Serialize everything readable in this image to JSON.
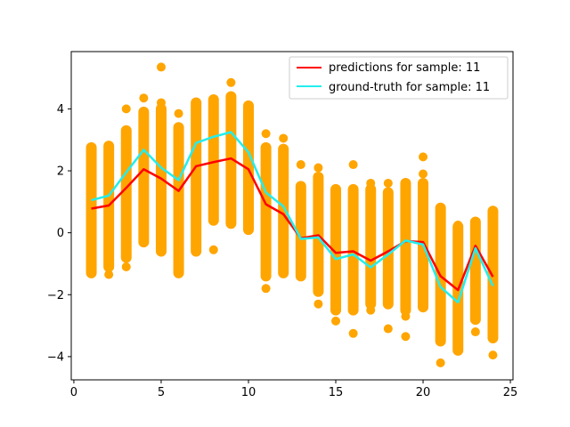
{
  "chart_data": {
    "type": "scatter",
    "title": "",
    "xlabel": "",
    "ylabel": "",
    "xlim": [
      -0.15,
      25.15
    ],
    "ylim": [
      -4.75,
      5.85
    ],
    "xticks": [
      0,
      5,
      10,
      15,
      20,
      25
    ],
    "yticks": [
      -4,
      -2,
      0,
      2,
      4
    ],
    "grid": false,
    "legend_position": "top-right",
    "scatter": {
      "color": "#FFA500",
      "x": [
        1,
        2,
        3,
        4,
        5,
        6,
        7,
        8,
        9,
        10,
        11,
        12,
        13,
        14,
        15,
        16,
        17,
        18,
        19,
        20,
        21,
        22,
        23,
        24
      ],
      "band_min": [
        -1.3,
        -1.1,
        -0.8,
        -0.3,
        -0.6,
        -1.3,
        -0.6,
        0.4,
        0.3,
        0.1,
        -1.4,
        -1.3,
        -1.4,
        -1.9,
        -2.5,
        -2.5,
        -2.3,
        -2.3,
        -2.5,
        -2.4,
        -3.5,
        -3.8,
        -2.8,
        -3.4
      ],
      "band_max": [
        2.75,
        2.8,
        3.3,
        3.9,
        4.0,
        3.4,
        4.2,
        4.3,
        4.4,
        4.1,
        2.75,
        2.7,
        1.5,
        1.8,
        1.4,
        1.4,
        1.4,
        1.3,
        1.6,
        1.6,
        0.8,
        0.2,
        0.35,
        0.7
      ],
      "outliers": [
        [
          2,
          -1.35
        ],
        [
          3,
          -1.1
        ],
        [
          3,
          4.0
        ],
        [
          4,
          4.35
        ],
        [
          5,
          5.35
        ],
        [
          5,
          4.2
        ],
        [
          6,
          3.85
        ],
        [
          6,
          -1.25
        ],
        [
          8,
          -0.55
        ],
        [
          9,
          4.85
        ],
        [
          11,
          3.2
        ],
        [
          11,
          -1.8
        ],
        [
          12,
          3.05
        ],
        [
          13,
          2.2
        ],
        [
          14,
          2.1
        ],
        [
          14,
          -2.3
        ],
        [
          15,
          -2.85
        ],
        [
          16,
          2.2
        ],
        [
          16,
          -3.25
        ],
        [
          17,
          1.6
        ],
        [
          17,
          -2.5
        ],
        [
          18,
          1.6
        ],
        [
          18,
          -3.1
        ],
        [
          19,
          -2.7
        ],
        [
          19,
          -3.35
        ],
        [
          20,
          2.45
        ],
        [
          20,
          1.9
        ],
        [
          21,
          -4.2
        ],
        [
          22,
          0.25
        ],
        [
          23,
          -3.2
        ],
        [
          24,
          -3.95
        ]
      ]
    },
    "series": [
      {
        "name": "predictions for sample: 11",
        "color": "#FF0000",
        "x": [
          1,
          2,
          3,
          4,
          5,
          6,
          7,
          8,
          9,
          10,
          11,
          12,
          13,
          14,
          15,
          16,
          17,
          18,
          19,
          20,
          21,
          22,
          23,
          24
        ],
        "y": [
          0.78,
          0.88,
          1.45,
          2.05,
          1.75,
          1.35,
          2.15,
          2.28,
          2.4,
          2.05,
          0.92,
          0.6,
          -0.18,
          -0.08,
          -0.65,
          -0.6,
          -0.9,
          -0.6,
          -0.27,
          -0.3,
          -1.4,
          -1.85,
          -0.42,
          -1.42
        ]
      },
      {
        "name": "ground-truth for sample: 11",
        "color": "#22EEEE",
        "x": [
          1,
          2,
          3,
          4,
          5,
          6,
          7,
          8,
          9,
          10,
          11,
          12,
          13,
          14,
          15,
          16,
          17,
          18,
          19,
          20,
          21,
          22,
          23,
          24
        ],
        "y": [
          1.05,
          1.2,
          1.95,
          2.68,
          2.1,
          1.7,
          2.9,
          3.1,
          3.25,
          2.6,
          1.3,
          0.85,
          -0.2,
          -0.15,
          -0.85,
          -0.7,
          -1.12,
          -0.7,
          -0.25,
          -0.38,
          -1.75,
          -2.25,
          -0.5,
          -1.72
        ]
      }
    ]
  }
}
